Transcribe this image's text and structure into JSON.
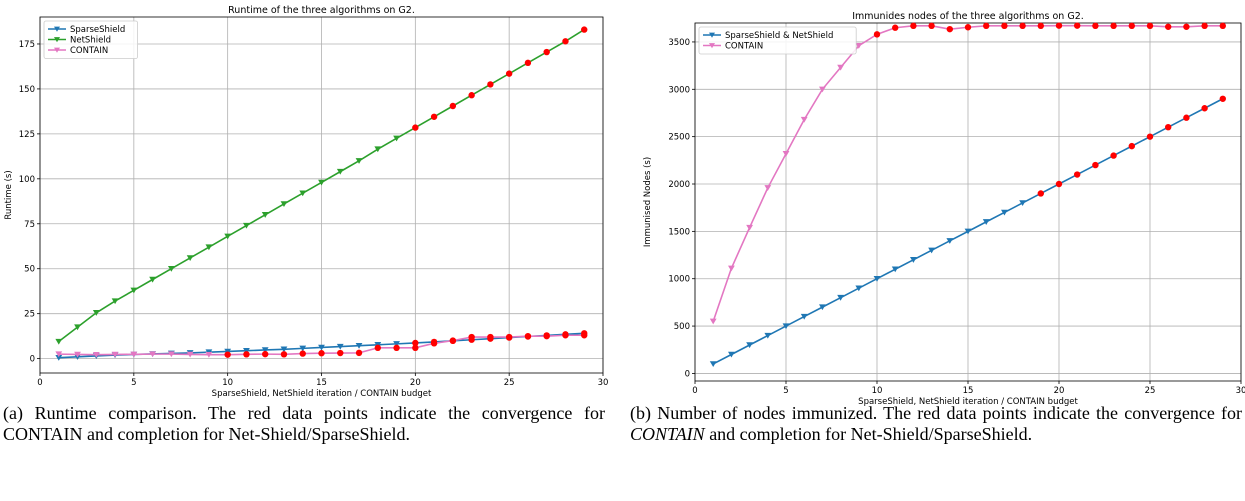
{
  "chart_data": [
    {
      "type": "line",
      "title": "Runtime of the three algorithms on G2.",
      "xlabel": "SparseShield, NetShield  iteration / CONTAIN  budget",
      "ylabel": "Runtime (s)",
      "xlim": [
        0,
        30
      ],
      "ylim": [
        -8,
        190
      ],
      "xticks": [
        0,
        5,
        10,
        15,
        20,
        25,
        30
      ],
      "yticks": [
        0,
        25,
        50,
        75,
        100,
        125,
        150,
        175
      ],
      "grid": true,
      "legend_position": "top-left",
      "x": [
        1,
        2,
        3,
        4,
        5,
        6,
        7,
        8,
        9,
        10,
        11,
        12,
        13,
        14,
        15,
        16,
        17,
        18,
        19,
        20,
        21,
        22,
        23,
        24,
        25,
        26,
        27,
        28,
        29
      ],
      "series": [
        {
          "name": "SparseShield",
          "color": "#1f77b4",
          "values": [
            0.5,
            1.0,
            1.5,
            2.0,
            2.3,
            2.6,
            2.9,
            3.2,
            3.6,
            4.0,
            4.4,
            4.8,
            5.2,
            5.7,
            6.2,
            6.7,
            7.2,
            7.7,
            8.2,
            8.7,
            9.3,
            9.9,
            10.5,
            11.1,
            11.7,
            12.3,
            12.9,
            13.5,
            14.1
          ]
        },
        {
          "name": "NetShield",
          "color": "#2ca02c",
          "values": [
            9.5,
            17.5,
            25.5,
            32.0,
            38.0,
            44.0,
            50.0,
            56.0,
            62.0,
            68.0,
            74.0,
            80.0,
            86.0,
            92.0,
            98.0,
            104.0,
            110.0,
            116.5,
            122.5,
            128.5,
            134.5,
            140.5,
            146.5,
            152.5,
            158.5,
            164.5,
            170.5,
            176.5,
            183.0
          ]
        },
        {
          "name": "CONTAIN",
          "color": "#e377c2",
          "values": [
            2.5,
            2.3,
            2.2,
            2.3,
            2.4,
            2.5,
            2.5,
            2.3,
            2.2,
            2.2,
            2.4,
            2.5,
            2.4,
            2.8,
            3.0,
            3.1,
            3.2,
            6.0,
            6.0,
            6.0,
            8.5,
            10.0,
            12.0,
            12.0,
            12.0,
            12.5,
            12.5,
            13.0,
            13.0
          ]
        }
      ],
      "markers": {
        "sparse_net_from_x": 20,
        "contain_from_x": 10,
        "color": "#ff0000"
      }
    },
    {
      "type": "line",
      "title": "Immunides nodes of the three algorithms on G2.",
      "xlabel": "SparseShield, NetShield  iteration / CONTAIN  budget",
      "ylabel": "Immunised Nodes (s)",
      "xlim": [
        0,
        30
      ],
      "ylim": [
        -80,
        3700
      ],
      "xticks": [
        0,
        5,
        10,
        15,
        20,
        25,
        30
      ],
      "yticks": [
        0,
        500,
        1000,
        1500,
        2000,
        2500,
        3000,
        3500
      ],
      "grid": true,
      "legend_position": "top-left",
      "x": [
        1,
        2,
        3,
        4,
        5,
        6,
        7,
        8,
        9,
        10,
        11,
        12,
        13,
        14,
        15,
        16,
        17,
        18,
        19,
        20,
        21,
        22,
        23,
        24,
        25,
        26,
        27,
        28,
        29
      ],
      "series": [
        {
          "name": "SparseShield & NetShield",
          "color": "#1f77b4",
          "values": [
            100,
            200,
            300,
            400,
            500,
            600,
            700,
            800,
            900,
            1000,
            1100,
            1200,
            1300,
            1400,
            1500,
            1600,
            1700,
            1800,
            1900,
            2000,
            2100,
            2200,
            2300,
            2400,
            2500,
            2600,
            2700,
            2800,
            2900
          ]
        },
        {
          "name": "CONTAIN",
          "color": "#e377c2",
          "values": [
            550,
            1110,
            1540,
            1960,
            2320,
            2680,
            3000,
            3230,
            3460,
            3580,
            3650,
            3670,
            3670,
            3635,
            3655,
            3670,
            3670,
            3670,
            3670,
            3672,
            3672,
            3670,
            3670,
            3670,
            3670,
            3660,
            3660,
            3670,
            3670
          ]
        }
      ],
      "markers": {
        "sparse_net_from_x": 19,
        "contain_from_x": 10,
        "color": "#ff0000"
      }
    }
  ],
  "captions": {
    "a": {
      "label": "(a)",
      "text": "Runtime comparison.   The red data points indicate the convergence for CONTAIN and completion for Net-Shield/SparseShield."
    },
    "b": {
      "label": "(b)",
      "text_1": "Number of nodes immunized.  The red data points indicate the convergence for ",
      "text_it": "CONTAIN",
      "text_2": " and completion for Net-Shield/SparseShield."
    }
  }
}
